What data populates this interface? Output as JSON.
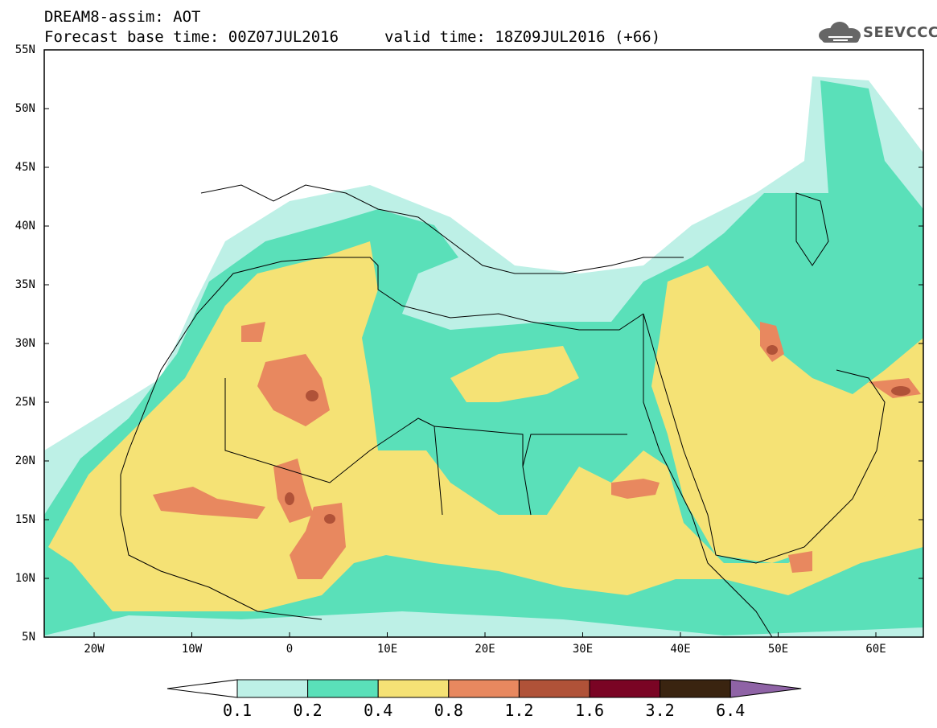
{
  "header": {
    "title": "DREAM8-assim: AOT",
    "base_time": "Forecast base time: 00Z07JUL2016",
    "valid_time": "valid time: 18Z09JUL2016 (+66)",
    "logo_text": "SEEVCCC",
    "logo_icon": "cloud-icon"
  },
  "axes": {
    "lat_labels": [
      "55N",
      "50N",
      "45N",
      "40N",
      "35N",
      "30N",
      "25N",
      "20N",
      "15N",
      "10N",
      "5N"
    ],
    "lon_labels": [
      "20W",
      "10W",
      "0",
      "10E",
      "20E",
      "30E",
      "40E",
      "50E",
      "60E"
    ]
  },
  "colorbar": {
    "levels": [
      "0.1",
      "0.2",
      "0.4",
      "0.8",
      "1.2",
      "1.6",
      "3.2",
      "6.4"
    ],
    "colors": [
      "#ffffff",
      "#bdf0e6",
      "#5ae0b9",
      "#f5e275",
      "#e8885f",
      "#b05238",
      "#7a0424",
      "#3a2410",
      "#8f63a6"
    ]
  },
  "map_colors": {
    "land_outline": "#000000",
    "background": "#ffffff"
  }
}
